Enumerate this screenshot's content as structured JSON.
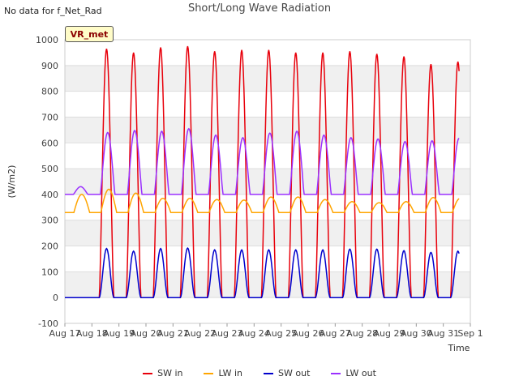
{
  "header": {
    "nodata": "No data for f_Net_Rad",
    "title": "Short/Long Wave Radiation",
    "badge": "VR_met"
  },
  "chart_data": {
    "type": "line",
    "title": "Short/Long Wave Radiation",
    "xlabel": "Time",
    "ylabel": "(W/m2)",
    "ylim": [
      -100,
      1000
    ],
    "yticks": [
      -100,
      0,
      100,
      200,
      300,
      400,
      500,
      600,
      700,
      800,
      900,
      1000
    ],
    "xticks": [
      "Aug 17",
      "Aug 18",
      "Aug 19",
      "Aug 20",
      "Aug 21",
      "Aug 22",
      "Aug 23",
      "Aug 24",
      "Aug 25",
      "Aug 26",
      "Aug 27",
      "Aug 28",
      "Aug 29",
      "Aug 30",
      "Aug 31",
      "Sep 1"
    ],
    "x_range_days": [
      0,
      15
    ],
    "days": [
      "Aug 17",
      "Aug 18",
      "Aug 19",
      "Aug 20",
      "Aug 21",
      "Aug 22",
      "Aug 23",
      "Aug 24",
      "Aug 25",
      "Aug 26",
      "Aug 27",
      "Aug 28",
      "Aug 29",
      "Aug 30",
      "Aug 31"
    ],
    "series": [
      {
        "name": "SW in",
        "color": "#e8000b",
        "daily_peak": [
          0,
          965,
          950,
          970,
          975,
          955,
          960,
          960,
          950,
          950,
          955,
          945,
          935,
          905,
          915
        ],
        "night": 0
      },
      {
        "name": "LW in",
        "color": "#ffa500",
        "daily_peak": [
          400,
          420,
          405,
          385,
          385,
          380,
          378,
          390,
          390,
          380,
          372,
          368,
          372,
          388,
          385
        ],
        "night": 330
      },
      {
        "name": "SW out",
        "color": "#0000cc",
        "daily_peak": [
          0,
          190,
          180,
          190,
          192,
          185,
          185,
          185,
          185,
          185,
          188,
          188,
          182,
          175,
          180
        ],
        "night": 0
      },
      {
        "name": "LW out",
        "color": "#9b30ff",
        "daily_peak": [
          430,
          640,
          648,
          645,
          655,
          630,
          620,
          638,
          645,
          630,
          620,
          615,
          605,
          608,
          618
        ],
        "night": 400
      }
    ],
    "legend": [
      "SW in",
      "LW in",
      "SW out",
      "LW out"
    ],
    "legend_position": "bottom"
  }
}
